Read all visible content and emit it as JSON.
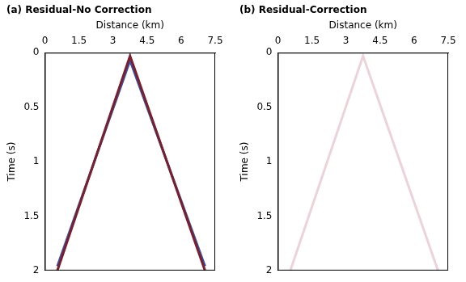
{
  "chart_data": [
    {
      "type": "line",
      "title": "(a) Residual-No Correction",
      "x_label": "Distance (km)",
      "y_label": "Time (s)",
      "x": [
        0.55,
        3.75,
        7.05
      ],
      "series": [
        {
          "color": "#7a1f2b",
          "values": [
            2,
            0.03,
            2
          ]
        },
        {
          "color": "#3b4fa8",
          "values": [
            1.96,
            0.07,
            1.96
          ]
        }
      ],
      "xlim": [
        0,
        7.5
      ],
      "xticks": [
        0,
        1.5,
        3,
        4.5,
        6,
        7.5
      ],
      "ylim": [
        0,
        2
      ],
      "yticks": [
        0,
        0.5,
        1,
        1.5,
        2
      ],
      "grid": false
    },
    {
      "type": "line",
      "title": "(b) Residual-Correction",
      "x_label": "Distance (km)",
      "y_label": "Time (s)",
      "x": [
        0.55,
        3.75,
        7.05
      ],
      "series": [
        {
          "color": "#ecd3d8",
          "values": [
            2,
            0.03,
            2
          ]
        }
      ],
      "xlim": [
        0,
        7.5
      ],
      "xticks": [
        0,
        1.5,
        3,
        4.5,
        6,
        7.5
      ],
      "ylim": [
        0,
        2
      ],
      "yticks": [
        0,
        0.5,
        1,
        1.5,
        2
      ],
      "grid": false
    }
  ]
}
